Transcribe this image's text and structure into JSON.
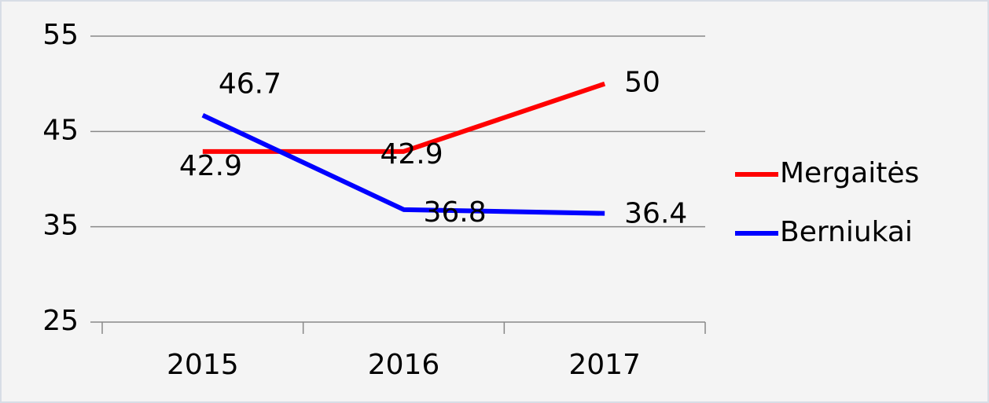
{
  "chart_data": {
    "type": "line",
    "categories": [
      "2015",
      "2016",
      "2017"
    ],
    "series": [
      {
        "name": "Mergaitės",
        "color": "#ff0000",
        "values": [
          42.9,
          42.9,
          50
        ]
      },
      {
        "name": "Berniukai",
        "color": "#0000ff",
        "values": [
          46.7,
          36.8,
          36.4
        ]
      }
    ],
    "ylim": [
      25,
      55
    ],
    "yticks": [
      25,
      35,
      45,
      55
    ],
    "grid": true,
    "legend": "right"
  }
}
